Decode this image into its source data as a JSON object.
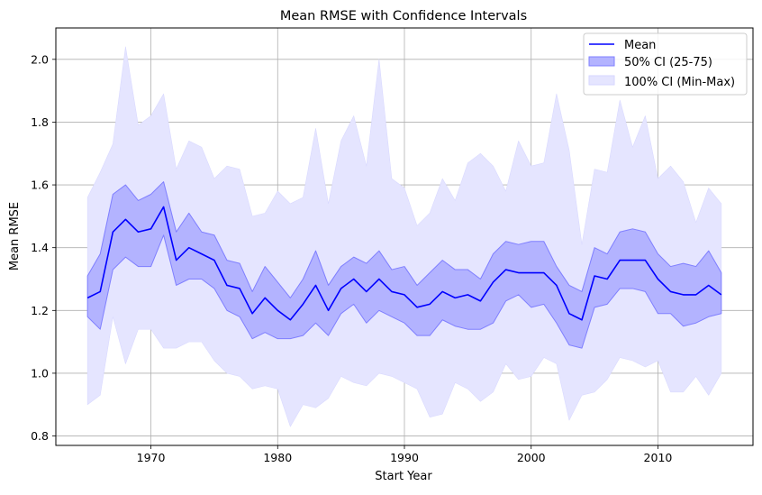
{
  "chart_data": {
    "type": "line",
    "title": "Mean RMSE with Confidence Intervals",
    "xlabel": "Start Year",
    "ylabel": "Mean RMSE",
    "xlim": [
      1962.5,
      2017.5
    ],
    "ylim": [
      0.77,
      2.1
    ],
    "xticks": [
      1970,
      1980,
      1990,
      2000,
      2010
    ],
    "yticks": [
      0.8,
      1.0,
      1.2,
      1.4,
      1.6,
      1.8,
      2.0
    ],
    "ytick_labels": [
      "0.8",
      "1.0",
      "1.2",
      "1.4",
      "1.6",
      "1.8",
      "2.0"
    ],
    "grid": true,
    "legend": {
      "placement": "top-right",
      "entries": [
        "Mean",
        "50% CI (25-75)",
        "100% CI (Min-Max)"
      ]
    },
    "colors": {
      "mean": "#0000ff",
      "ci50_fill": "#b3b3ff",
      "ci50_edge": "#7f7fff",
      "ci100_fill": "#e5e5ff",
      "grid": "#b0b0b0"
    },
    "x": [
      1965,
      1966,
      1967,
      1968,
      1969,
      1970,
      1971,
      1972,
      1973,
      1974,
      1975,
      1976,
      1977,
      1978,
      1979,
      1980,
      1981,
      1982,
      1983,
      1984,
      1985,
      1986,
      1987,
      1988,
      1989,
      1990,
      1991,
      1992,
      1993,
      1994,
      1995,
      1996,
      1997,
      1998,
      1999,
      2000,
      2001,
      2002,
      2003,
      2004,
      2005,
      2006,
      2007,
      2008,
      2009,
      2010,
      2011,
      2012,
      2013,
      2014,
      2015
    ],
    "series": [
      {
        "name": "Mean",
        "values": [
          1.24,
          1.26,
          1.45,
          1.49,
          1.45,
          1.46,
          1.53,
          1.36,
          1.4,
          1.38,
          1.36,
          1.28,
          1.27,
          1.19,
          1.24,
          1.2,
          1.17,
          1.22,
          1.28,
          1.2,
          1.27,
          1.3,
          1.26,
          1.3,
          1.26,
          1.25,
          1.21,
          1.22,
          1.26,
          1.24,
          1.25,
          1.23,
          1.29,
          1.33,
          1.32,
          1.32,
          1.32,
          1.28,
          1.19,
          1.17,
          1.31,
          1.3,
          1.36,
          1.36,
          1.36,
          1.3,
          1.26,
          1.25,
          1.25,
          1.28,
          1.25
        ]
      },
      {
        "name": "50% CI (25-75)",
        "lower": [
          1.18,
          1.14,
          1.33,
          1.37,
          1.34,
          1.34,
          1.44,
          1.28,
          1.3,
          1.3,
          1.27,
          1.2,
          1.18,
          1.11,
          1.13,
          1.11,
          1.11,
          1.12,
          1.16,
          1.12,
          1.19,
          1.22,
          1.16,
          1.2,
          1.18,
          1.16,
          1.12,
          1.12,
          1.17,
          1.15,
          1.14,
          1.14,
          1.16,
          1.23,
          1.25,
          1.21,
          1.22,
          1.16,
          1.09,
          1.08,
          1.21,
          1.22,
          1.27,
          1.27,
          1.26,
          1.19,
          1.19,
          1.15,
          1.16,
          1.18,
          1.19
        ],
        "upper": [
          1.31,
          1.38,
          1.57,
          1.6,
          1.55,
          1.57,
          1.61,
          1.45,
          1.51,
          1.45,
          1.44,
          1.36,
          1.35,
          1.26,
          1.34,
          1.29,
          1.24,
          1.3,
          1.39,
          1.28,
          1.34,
          1.37,
          1.35,
          1.39,
          1.33,
          1.34,
          1.28,
          1.32,
          1.36,
          1.33,
          1.33,
          1.3,
          1.38,
          1.42,
          1.41,
          1.42,
          1.42,
          1.34,
          1.28,
          1.26,
          1.4,
          1.38,
          1.45,
          1.46,
          1.45,
          1.38,
          1.34,
          1.35,
          1.34,
          1.39,
          1.32
        ]
      },
      {
        "name": "100% CI (Min-Max)",
        "lower": [
          0.9,
          0.93,
          1.18,
          1.03,
          1.14,
          1.14,
          1.08,
          1.08,
          1.1,
          1.1,
          1.04,
          1.0,
          0.99,
          0.95,
          0.96,
          0.95,
          0.83,
          0.9,
          0.89,
          0.92,
          0.99,
          0.97,
          0.96,
          1.0,
          0.99,
          0.97,
          0.95,
          0.86,
          0.87,
          0.97,
          0.95,
          0.91,
          0.94,
          1.03,
          0.98,
          0.99,
          1.05,
          1.03,
          0.85,
          0.93,
          0.94,
          0.98,
          1.05,
          1.04,
          1.02,
          1.04,
          0.94,
          0.94,
          0.99,
          0.93,
          1.0
        ],
        "upper": [
          1.56,
          1.64,
          1.73,
          2.04,
          1.79,
          1.82,
          1.89,
          1.65,
          1.74,
          1.72,
          1.62,
          1.66,
          1.65,
          1.5,
          1.51,
          1.58,
          1.54,
          1.56,
          1.78,
          1.54,
          1.74,
          1.82,
          1.66,
          2.0,
          1.62,
          1.59,
          1.47,
          1.51,
          1.62,
          1.55,
          1.67,
          1.7,
          1.66,
          1.58,
          1.74,
          1.66,
          1.67,
          1.89,
          1.71,
          1.41,
          1.65,
          1.64,
          1.87,
          1.72,
          1.82,
          1.62,
          1.66,
          1.61,
          1.48,
          1.59,
          1.54
        ]
      }
    ]
  }
}
